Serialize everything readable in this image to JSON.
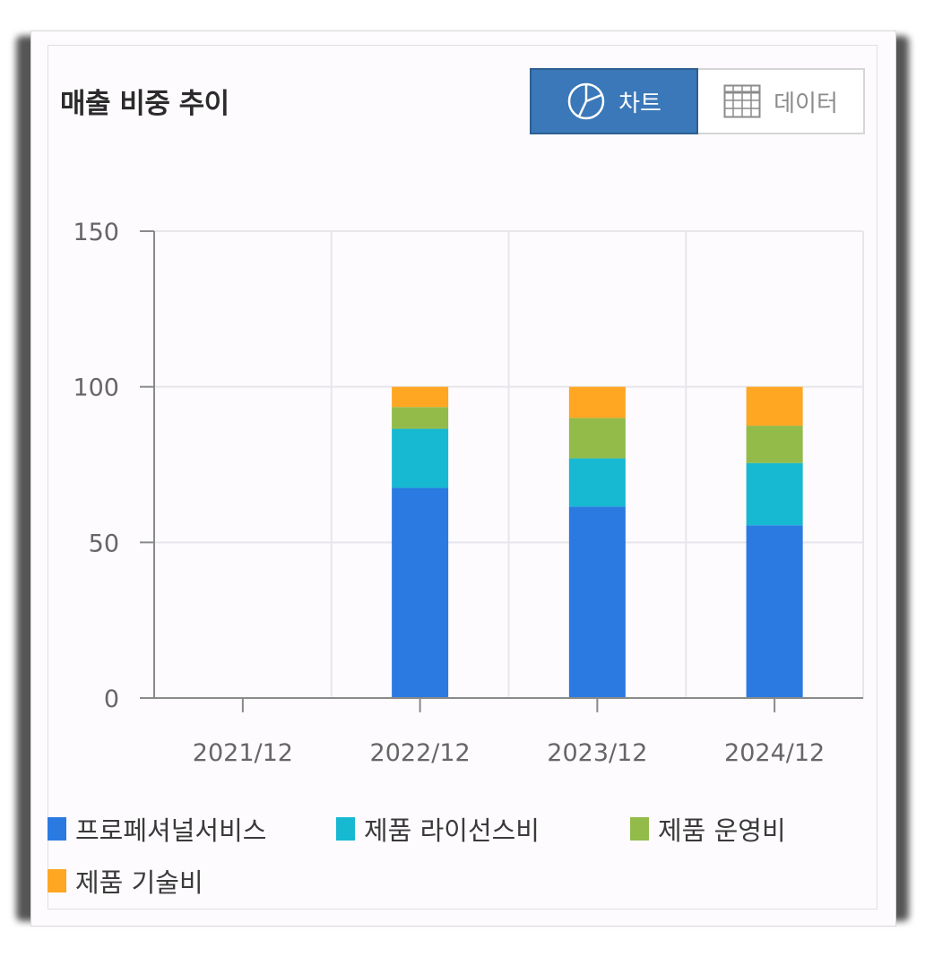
{
  "title": "매출 비중 추이",
  "toggle": {
    "chart_label": "차트",
    "data_label": "데이터",
    "active": "chart"
  },
  "colors": {
    "professional": "#2a7ae2",
    "license": "#17b8d2",
    "operation": "#92bb4a",
    "tech": "#ffa623"
  },
  "legend": [
    {
      "label": "프로페셔널서비스",
      "color": "#2a7ae2"
    },
    {
      "label": "제품 라이선스비",
      "color": "#17b8d2"
    },
    {
      "label": "제품 운영비",
      "color": "#92bb4a"
    },
    {
      "label": "제품 기술비",
      "color": "#ffa623"
    }
  ],
  "chart_data": {
    "type": "bar",
    "stacked": true,
    "categories": [
      "2021/12",
      "2022/12",
      "2023/12",
      "2024/12"
    ],
    "series": [
      {
        "name": "프로페셔널서비스",
        "values": [
          0,
          67.5,
          61.5,
          55.5
        ]
      },
      {
        "name": "제품 라이선스비",
        "values": [
          0,
          19.0,
          15.5,
          20.0
        ]
      },
      {
        "name": "제품 운영비",
        "values": [
          0,
          7.0,
          13.0,
          12.0
        ]
      },
      {
        "name": "제품 기술비",
        "values": [
          0,
          6.5,
          10.0,
          12.5
        ]
      }
    ],
    "ylim": [
      0,
      150
    ],
    "yticks": [
      0,
      50,
      100,
      150
    ],
    "grid": true,
    "legend_position": "bottom"
  }
}
